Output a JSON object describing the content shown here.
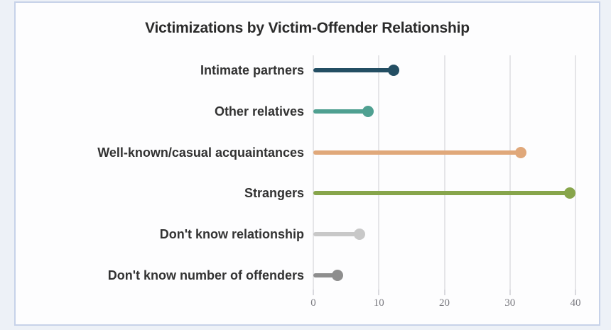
{
  "page": {
    "background_color": "#edf1f7",
    "card_background_color": "#fdfdfe",
    "card_border_color": "#c7d2e9"
  },
  "chart_data": {
    "type": "bar",
    "variant": "horizontal-lollipop",
    "title": "Victimizations by Victim-Offender Relationship",
    "categories": [
      "Intimate partners",
      "Other relatives",
      "Well-known/casual acquaintances",
      "Strangers",
      "Don't know relationship",
      "Don't know number of offenders"
    ],
    "values": [
      12.2,
      8.3,
      31.6,
      39.1,
      7,
      3.7
    ],
    "colors": [
      "#234e63",
      "#4fa091",
      "#e0a87a",
      "#87a54b",
      "#c8c8c8",
      "#8e8e8e"
    ],
    "xlabel": "",
    "ylabel": "",
    "xlim": [
      0,
      40
    ],
    "x_ticks": [
      0,
      10,
      20,
      30,
      40
    ],
    "grid": "vertical-only",
    "legend_position": "none",
    "gridline_color": "#e5e5e8",
    "tick_label_color": "#7a7a80",
    "title_color": "#2b2b2b",
    "category_label_color": "#323232"
  }
}
